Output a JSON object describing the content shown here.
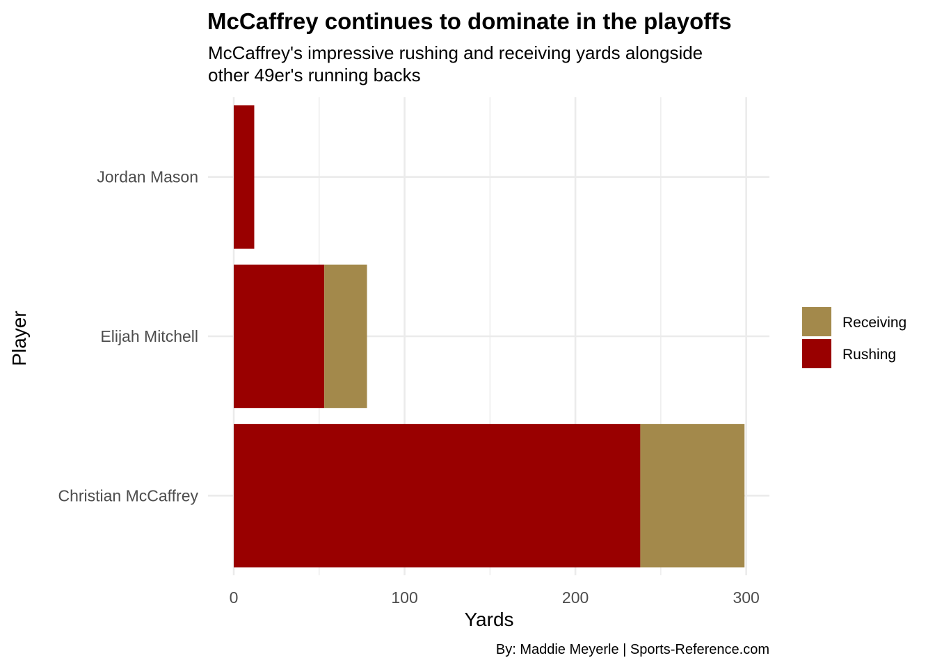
{
  "chart_data": {
    "type": "bar",
    "orientation": "horizontal",
    "stacked": true,
    "title": "McCaffrey continues to dominate in the playoffs",
    "subtitle_lines": [
      "McCaffrey's impressive rushing and receiving yards alongside",
      "other 49er's running backs"
    ],
    "xlabel": "Yards",
    "ylabel": "Player",
    "caption": "By: Maddie Meyerle | Sports-Reference.com",
    "categories": [
      "Christian McCaffrey",
      "Elijah Mitchell",
      "Jordan Mason"
    ],
    "series": [
      {
        "name": "Rushing",
        "color": "#990000",
        "values": [
          238,
          53,
          12
        ]
      },
      {
        "name": "Receiving",
        "color": "#A3894B",
        "values": [
          61,
          25,
          0
        ]
      }
    ],
    "legend": {
      "position": "right",
      "entries": [
        {
          "label": "Receiving",
          "color": "#A3894B"
        },
        {
          "label": "Rushing",
          "color": "#990000"
        }
      ]
    },
    "xlim": [
      0,
      314
    ],
    "x_ticks": [
      0,
      100,
      200,
      300
    ],
    "x_minor_ticks": [
      50,
      150,
      250
    ],
    "grid": true
  }
}
